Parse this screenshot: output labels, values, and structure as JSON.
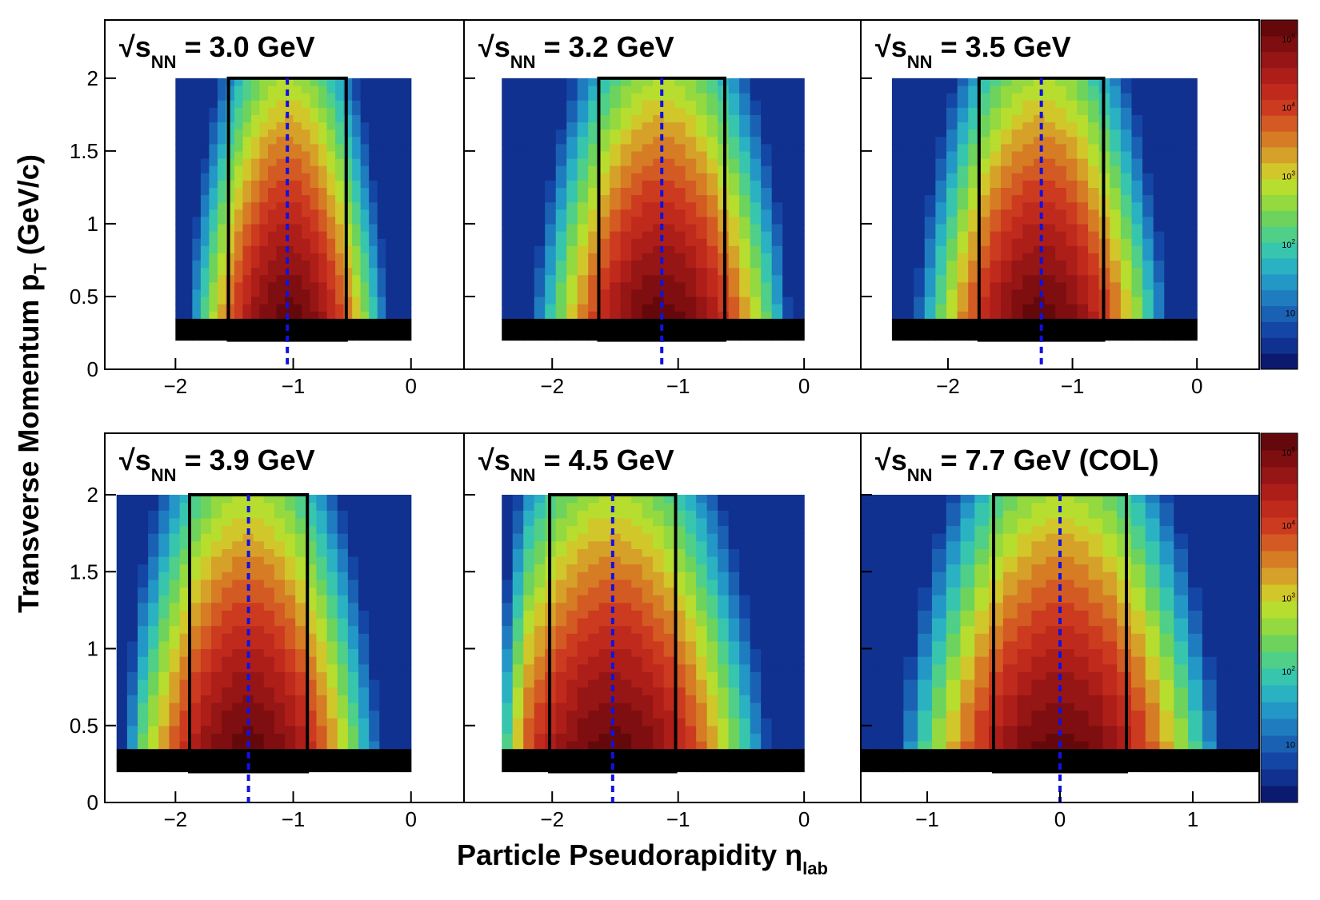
{
  "figure": {
    "ylabel_main": "Transverse Momentum p",
    "ylabel_sub": "T",
    "ylabel_unit": " (GeV/c)",
    "xlabel_main": "Particle Pseudorapidity η",
    "xlabel_sub": "lab"
  },
  "chart_data": [
    {
      "type": "heatmap",
      "label_main": "√s",
      "label_sub": "NN",
      "label_rest": " = 3.0 GeV",
      "xlim": [
        -2.6,
        0.45
      ],
      "ylim": [
        0,
        2.4
      ],
      "eta_min": -2.0,
      "eta_max": 0.0,
      "eta_center": -1.05,
      "eta_cut": [
        -1.55,
        -0.55
      ],
      "pt_range": [
        0.2,
        2.0
      ],
      "x_ticks": [
        "−2",
        "−1",
        "0"
      ],
      "x_tick_values": [
        -2,
        -1,
        0
      ],
      "y_ticks": [
        "0",
        "0.5",
        "1",
        "1.5",
        "2"
      ],
      "y_tick_values": [
        0,
        0.5,
        1,
        1.5,
        2
      ],
      "show_y_labels": true
    },
    {
      "type": "heatmap",
      "label_main": "√s",
      "label_sub": "NN",
      "label_rest": " = 3.2 GeV",
      "xlim": [
        -2.7,
        0.45
      ],
      "ylim": [
        0,
        2.4
      ],
      "eta_min": -2.4,
      "eta_max": 0.0,
      "eta_center": -1.13,
      "eta_cut": [
        -1.63,
        -0.63
      ],
      "pt_range": [
        0.2,
        2.0
      ],
      "x_ticks": [
        "−2",
        "−1",
        "0"
      ],
      "x_tick_values": [
        -2,
        -1,
        0
      ],
      "y_ticks": [
        "0",
        "0.5",
        "1",
        "1.5",
        "2"
      ],
      "y_tick_values": [
        0,
        0.5,
        1,
        1.5,
        2
      ],
      "show_y_labels": false
    },
    {
      "type": "heatmap",
      "label_main": "√s",
      "label_sub": "NN",
      "label_rest": " = 3.5 GeV",
      "xlim": [
        -2.7,
        0.5
      ],
      "ylim": [
        0,
        2.4
      ],
      "eta_min": -2.45,
      "eta_max": 0.0,
      "eta_center": -1.25,
      "eta_cut": [
        -1.75,
        -0.75
      ],
      "pt_range": [
        0.2,
        2.0
      ],
      "x_ticks": [
        "−2",
        "−1",
        "0"
      ],
      "x_tick_values": [
        -2,
        -1,
        0
      ],
      "y_ticks": [
        "0",
        "0.5",
        "1",
        "1.5",
        "2"
      ],
      "y_tick_values": [
        0,
        0.5,
        1,
        1.5,
        2
      ],
      "show_y_labels": false
    },
    {
      "type": "heatmap",
      "label_main": "√s",
      "label_sub": "NN",
      "label_rest": " = 3.9 GeV",
      "xlim": [
        -2.6,
        0.45
      ],
      "ylim": [
        0,
        2.4
      ],
      "eta_min": -2.5,
      "eta_max": 0.0,
      "eta_center": -1.38,
      "eta_cut": [
        -1.88,
        -0.88
      ],
      "pt_range": [
        0.2,
        2.0
      ],
      "x_ticks": [
        "−2",
        "−1",
        "0"
      ],
      "x_tick_values": [
        -2,
        -1,
        0
      ],
      "y_ticks": [
        "0",
        "0.5",
        "1",
        "1.5",
        "2"
      ],
      "y_tick_values": [
        0,
        0.5,
        1,
        1.5,
        2
      ],
      "show_y_labels": true
    },
    {
      "type": "heatmap",
      "label_main": "√s",
      "label_sub": "NN",
      "label_rest": " = 4.5 GeV",
      "xlim": [
        -2.7,
        0.45
      ],
      "ylim": [
        0,
        2.4
      ],
      "eta_min": -2.4,
      "eta_max": 0.0,
      "eta_center": -1.52,
      "eta_cut": [
        -2.02,
        -1.02
      ],
      "pt_range": [
        0.2,
        2.0
      ],
      "x_ticks": [
        "−2",
        "−1",
        "0"
      ],
      "x_tick_values": [
        -2,
        -1,
        0
      ],
      "y_ticks": [
        "0",
        "0.5",
        "1",
        "1.5",
        "2"
      ],
      "y_tick_values": [
        0,
        0.5,
        1,
        1.5,
        2
      ],
      "show_y_labels": false
    },
    {
      "type": "heatmap",
      "label_main": "√s",
      "label_sub": "NN",
      "label_rest": " = 7.7 GeV (COL)",
      "xlim": [
        -1.5,
        1.5
      ],
      "ylim": [
        0,
        2.4
      ],
      "eta_min": -1.5,
      "eta_max": 1.5,
      "eta_center": 0.0,
      "eta_cut": [
        -0.5,
        0.5
      ],
      "pt_range": [
        0.2,
        2.0
      ],
      "x_ticks": [
        "−1",
        "0",
        "1"
      ],
      "x_tick_values": [
        -1,
        0,
        1
      ],
      "y_ticks": [
        "0",
        "0.5",
        "1",
        "1.5",
        "2"
      ],
      "y_tick_values": [
        0,
        0.5,
        1,
        1.5,
        2
      ],
      "show_y_labels": false
    }
  ],
  "colorbar": {
    "scale": "log",
    "labels": [
      "10",
      "10",
      "10",
      "10",
      "10"
    ],
    "exponents": [
      "5",
      "4",
      "3",
      "2",
      ""
    ],
    "palette": [
      "#0b1a6e",
      "#10318f",
      "#1446a6",
      "#1a61b3",
      "#1f7dbf",
      "#2397c6",
      "#2ab2c2",
      "#37c6ad",
      "#4fcf88",
      "#6dd35c",
      "#93d93f",
      "#b7dd2e",
      "#d1c72a",
      "#d6a128",
      "#d67c25",
      "#d35a22",
      "#cc3a1f",
      "#bf2a1c",
      "#ad1e19",
      "#961515",
      "#7f0e10",
      "#65080b"
    ]
  },
  "colors": {
    "cut_box": "#000000",
    "center_line": "#1111e0",
    "axis": "#000000"
  }
}
